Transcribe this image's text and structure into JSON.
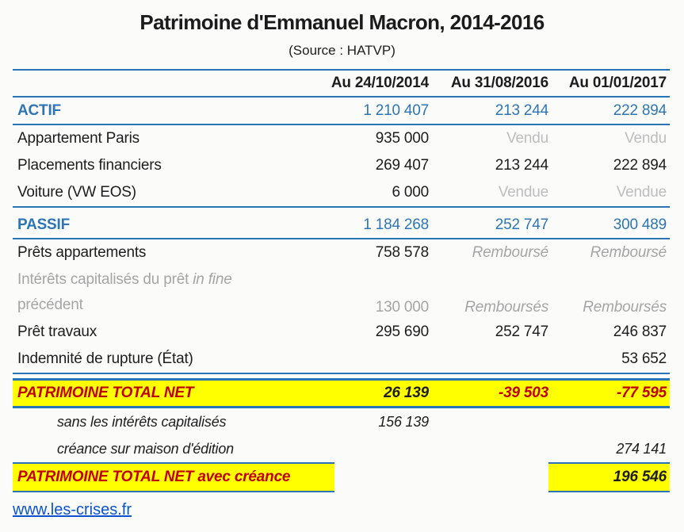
{
  "header": {
    "title": "Patrimoine d'Emmanuel Macron, 2014-2016",
    "subtitle": "(Source : HATVP)"
  },
  "table": {
    "columns": [
      "Au 24/10/2014",
      "Au 31/08/2016",
      "Au 01/01/2017"
    ],
    "rows": [
      {
        "label": "ACTIF",
        "values": [
          "1 210 407",
          "213 244",
          "222 894"
        ]
      },
      {
        "label": "Appartement Paris",
        "values": [
          "935 000",
          "Vendu",
          "Vendu"
        ]
      },
      {
        "label": "Placements financiers",
        "values": [
          "269 407",
          "213 244",
          "222 894"
        ]
      },
      {
        "label": "Voiture (VW EOS)",
        "values": [
          "6 000",
          "Vendue",
          "Vendue"
        ]
      },
      {
        "label": "PASSIF",
        "values": [
          "1 184 268",
          "252 747",
          "300 489"
        ]
      },
      {
        "label": "Prêts appartements",
        "values": [
          "758 578",
          "Remboursé",
          "Remboursé"
        ]
      },
      {
        "label_line1": "Intérêts capitalisés du prêt ",
        "label_italic": "in fine",
        "label_line2": "précédent",
        "values": [
          "130 000",
          "Remboursés",
          "Remboursés"
        ]
      },
      {
        "label": "Prêt travaux",
        "values": [
          "295 690",
          "252 747",
          "246 837"
        ]
      },
      {
        "label": "Indemnité de rupture (État)",
        "values": [
          "",
          "",
          "53 652"
        ]
      },
      {
        "label": "PATRIMOINE TOTAL NET",
        "values": [
          "26 139",
          "-39 503",
          "-77 595"
        ]
      },
      {
        "label": "sans les intérêts capitalisés",
        "values": [
          "156 139",
          "",
          ""
        ]
      },
      {
        "label": "créance sur maison d'édition",
        "values": [
          "",
          "",
          "274 141"
        ]
      },
      {
        "label": "PATRIMOINE TOTAL NET avec créance",
        "values": [
          "",
          "",
          "196 546"
        ]
      }
    ]
  },
  "footer": {
    "link_text": "www.les-crises.fr"
  },
  "colors": {
    "accent_blue": "#2E75B6",
    "negative_red": "#C00000",
    "highlight_yellow": "#FFFF00",
    "muted_gray": "#BDBDBD",
    "link_blue": "#0B53CE"
  }
}
